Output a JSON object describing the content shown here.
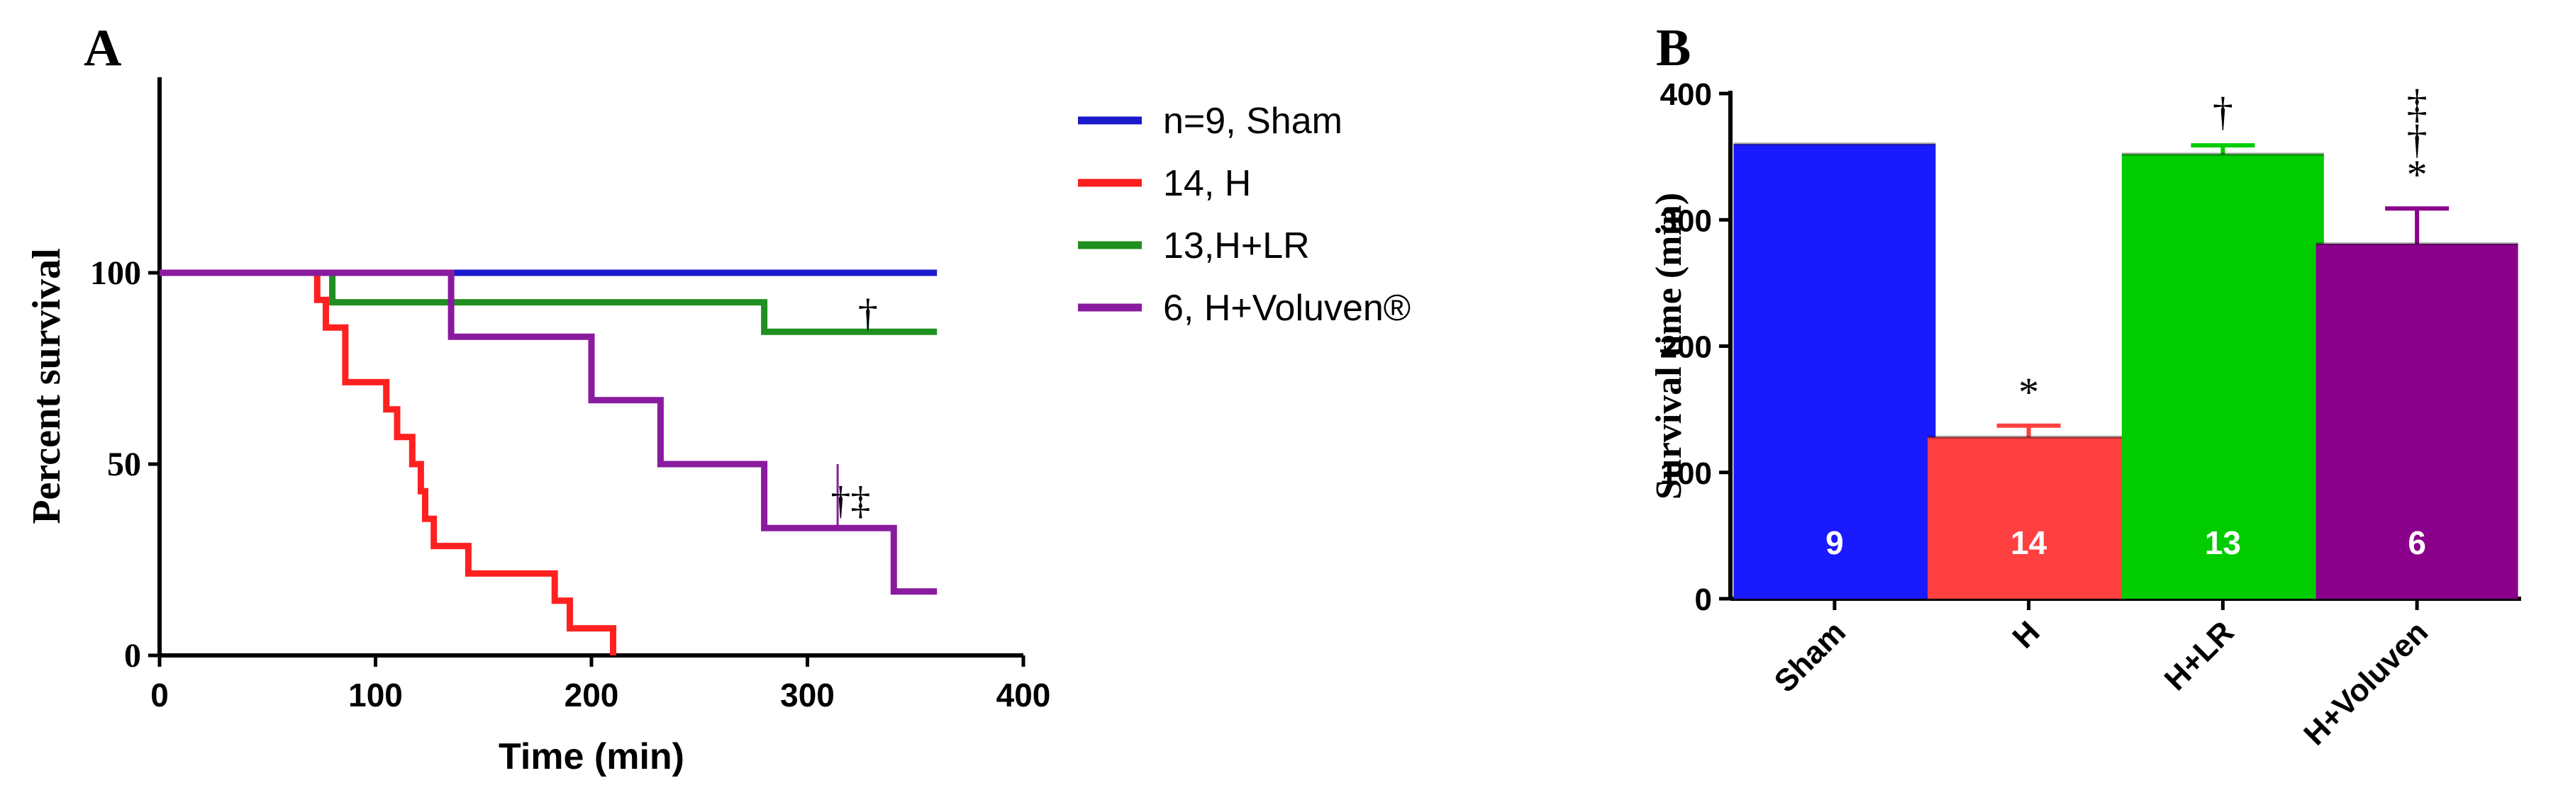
{
  "chart_data": [
    {
      "panel_label": "A",
      "type": "line",
      "xlabel": "Time (min)",
      "ylabel": "Percent survival",
      "xlim": [
        0,
        400
      ],
      "ylim": [
        0,
        150
      ],
      "x_ticks": [
        "0",
        "100",
        "200",
        "300",
        "400"
      ],
      "y_ticks": [
        "0",
        "50",
        "100"
      ],
      "grid": false,
      "legend_placement": "right",
      "series": [
        {
          "name": "n=9, Sham",
          "color": "#1a1acc",
          "points": [
            [
              0,
              100
            ],
            [
              360,
              100
            ]
          ]
        },
        {
          "name": "14, H",
          "color": "#ff2020",
          "points": [
            [
              0,
              100
            ],
            [
              73,
              100
            ],
            [
              73,
              92.9
            ],
            [
              77,
              92.9
            ],
            [
              77,
              85.7
            ],
            [
              86,
              85.7
            ],
            [
              86,
              71.4
            ],
            [
              105,
              71.4
            ],
            [
              105,
              64.3
            ],
            [
              110,
              64.3
            ],
            [
              110,
              57.1
            ],
            [
              117,
              57.1
            ],
            [
              117,
              50
            ],
            [
              121,
              50
            ],
            [
              121,
              42.9
            ],
            [
              123,
              42.9
            ],
            [
              123,
              35.7
            ],
            [
              127,
              35.7
            ],
            [
              127,
              28.6
            ],
            [
              143,
              28.6
            ],
            [
              143,
              21.4
            ],
            [
              183,
              21.4
            ],
            [
              183,
              14.3
            ],
            [
              190,
              14.3
            ],
            [
              190,
              7.1
            ],
            [
              210,
              7.1
            ],
            [
              210,
              0
            ]
          ]
        },
        {
          "name": "13,H+LR",
          "color": "#1f8f1f",
          "points": [
            [
              0,
              100
            ],
            [
              80,
              100
            ],
            [
              80,
              92.3
            ],
            [
              280,
              92.3
            ],
            [
              280,
              84.6
            ],
            [
              360,
              84.6
            ]
          ]
        },
        {
          "name": "6, H+Voluven®",
          "color": "#8a1a9e",
          "points": [
            [
              0,
              100
            ],
            [
              135,
              100
            ],
            [
              135,
              83.3
            ],
            [
              200,
              83.3
            ],
            [
              200,
              66.7
            ],
            [
              232,
              66.7
            ],
            [
              232,
              50
            ],
            [
              280,
              50
            ],
            [
              280,
              33.3
            ],
            [
              340,
              33.3
            ],
            [
              340,
              16.7
            ],
            [
              360,
              16.7
            ]
          ]
        }
      ],
      "annotations": [
        {
          "text": "†",
          "x": 328,
          "y": 86
        },
        {
          "text": "†‡",
          "x": 320,
          "y": 37
        }
      ]
    },
    {
      "panel_label": "B",
      "type": "bar",
      "ylabel": "Survival time (min)",
      "ylim": [
        0,
        400
      ],
      "y_ticks": [
        "0",
        "100",
        "200",
        "300",
        "400"
      ],
      "grid": false,
      "categories": [
        "Sham",
        "H",
        "H+LR",
        "H+Voluven"
      ],
      "values": [
        360,
        128,
        352,
        281
      ],
      "errors": [
        0,
        9,
        7,
        28
      ],
      "colors": [
        "#1a1aff",
        "#ff4040",
        "#00cc00",
        "#8b008b"
      ],
      "bar_labels": [
        "9",
        "14",
        "13",
        "6"
      ],
      "significance": [
        "",
        "*",
        "†",
        "‡\n†\n*"
      ]
    }
  ]
}
